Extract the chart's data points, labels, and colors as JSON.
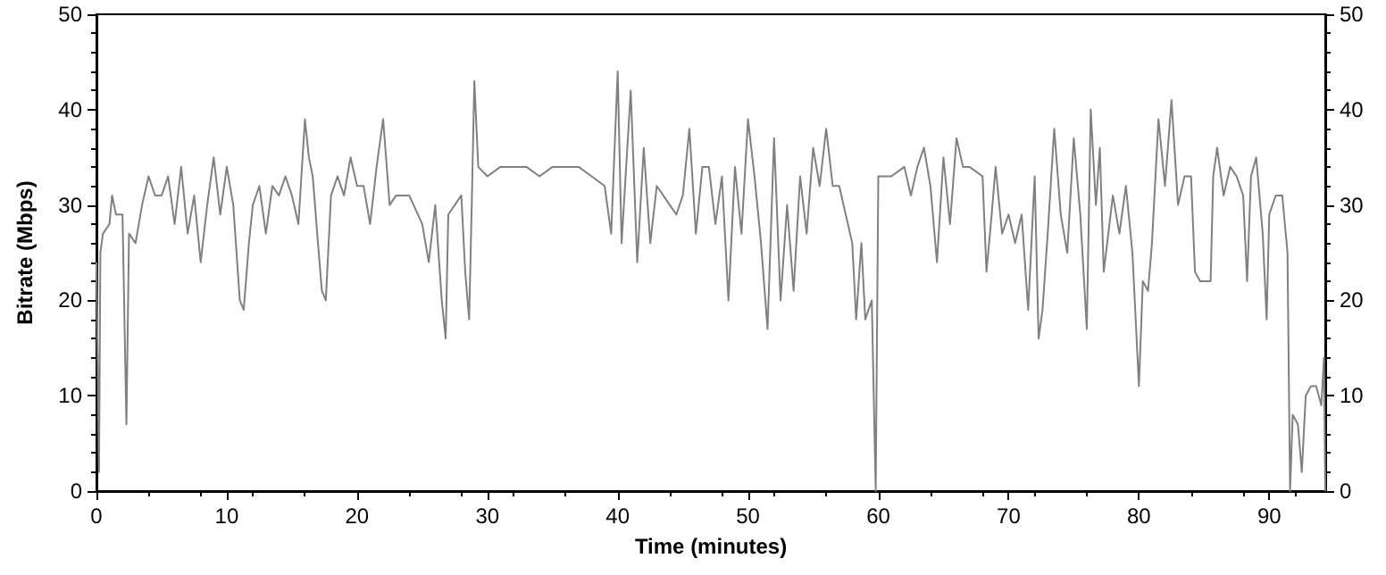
{
  "chart_data": {
    "type": "line",
    "xlabel": "Time (minutes)",
    "ylabel": "Bitrate (Mbps)",
    "xlim": [
      0,
      94.3
    ],
    "xticks": [
      0,
      10,
      20,
      30,
      40,
      50,
      60,
      70,
      80,
      90
    ],
    "ylim": [
      0,
      50
    ],
    "yticks": [
      0,
      10,
      20,
      30,
      40,
      50
    ],
    "y2lim": [
      0,
      50
    ],
    "y2ticks": [
      0,
      10,
      20,
      30,
      40,
      50
    ],
    "grid": false,
    "marker": "none",
    "line_style": "solid",
    "series": [
      {
        "color": "#808080",
        "x": [
          0,
          0.2,
          0.3,
          0.5,
          1,
          1.2,
          1.5,
          2,
          2.3,
          2.5,
          3,
          3.5,
          4,
          4.5,
          5,
          5.5,
          6,
          6.5,
          7,
          7.5,
          8,
          8.5,
          9,
          9.5,
          10,
          10.5,
          11,
          11.3,
          11.7,
          12,
          12.5,
          13,
          13.5,
          14,
          14.5,
          15,
          15.5,
          16,
          16.3,
          16.6,
          17,
          17.3,
          17.6,
          18,
          18.5,
          19,
          19.5,
          20,
          20.5,
          21,
          21.5,
          22,
          22.5,
          23,
          24,
          25,
          25.5,
          26,
          26.5,
          26.8,
          27,
          28,
          28.3,
          28.6,
          28.8,
          29,
          29.3,
          30,
          31,
          32,
          33,
          34,
          35,
          36,
          37,
          38,
          39,
          39.5,
          40,
          40.3,
          41,
          41.5,
          42,
          42.5,
          43,
          44,
          44.5,
          45,
          45.5,
          46,
          46.5,
          47,
          47.5,
          48,
          48.5,
          49,
          49.5,
          50,
          50.5,
          51,
          51.5,
          52,
          52.5,
          53,
          53.5,
          54,
          54.5,
          55,
          55.5,
          56,
          56.5,
          57,
          58,
          58.3,
          58.7,
          59,
          59.5,
          59.8,
          60,
          61,
          62,
          62.5,
          63,
          63.5,
          64,
          64.5,
          65,
          65.5,
          66,
          66.5,
          67,
          68,
          68.3,
          68.7,
          69,
          69.5,
          70,
          70.5,
          71,
          71.5,
          72,
          72.3,
          72.6,
          73,
          73.5,
          74,
          74.5,
          75,
          75.5,
          76,
          76.3,
          76.7,
          77,
          77.3,
          78,
          78.5,
          79,
          79.5,
          80,
          80.3,
          80.7,
          81,
          81.5,
          82,
          82.5,
          83,
          83.5,
          84,
          84.3,
          84.7,
          85,
          85.5,
          85.7,
          86,
          86.5,
          87,
          87.5,
          88,
          88.3,
          88.6,
          89,
          89.5,
          89.8,
          90,
          90.5,
          91,
          91.4,
          91.6,
          91.8,
          92.2,
          92.5,
          92.8,
          93.2,
          93.6,
          94,
          94.2,
          94.3
        ],
        "values": [
          24,
          2,
          25,
          27,
          28,
          31,
          29,
          29,
          7,
          27,
          26,
          30,
          33,
          31,
          31,
          33,
          28,
          34,
          27,
          31,
          24,
          30,
          35,
          29,
          34,
          30,
          20,
          19,
          26,
          30,
          32,
          27,
          32,
          31,
          33,
          31,
          28,
          39,
          35,
          33,
          26,
          21,
          20,
          31,
          33,
          31,
          35,
          32,
          32,
          28,
          34,
          39,
          30,
          31,
          31,
          28,
          24,
          30,
          20,
          16,
          29,
          31,
          23,
          18,
          30,
          43,
          34,
          33,
          34,
          34,
          34,
          33,
          34,
          34,
          34,
          33,
          32,
          27,
          44,
          26,
          42,
          24,
          36,
          26,
          32,
          30,
          29,
          31,
          38,
          27,
          34,
          34,
          28,
          33,
          20,
          34,
          27,
          39,
          33,
          26,
          17,
          37,
          20,
          30,
          21,
          33,
          27,
          36,
          32,
          38,
          32,
          32,
          26,
          18,
          26,
          18,
          20,
          0,
          33,
          33,
          34,
          31,
          34,
          36,
          32,
          24,
          35,
          28,
          37,
          34,
          34,
          33,
          23,
          29,
          34,
          27,
          29,
          26,
          29,
          19,
          33,
          16,
          19,
          27,
          38,
          29,
          25,
          37,
          29,
          17,
          40,
          30,
          36,
          23,
          31,
          27,
          32,
          25,
          11,
          22,
          21,
          26,
          39,
          32,
          41,
          30,
          33,
          33,
          23,
          22,
          22,
          22,
          33,
          36,
          31,
          34,
          33,
          31,
          22,
          33,
          35,
          27,
          18,
          29,
          31,
          31,
          25,
          0,
          8,
          7,
          2,
          10,
          11,
          11,
          9,
          14,
          0
        ]
      }
    ]
  }
}
